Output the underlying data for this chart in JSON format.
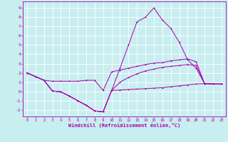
{
  "background_color": "#c8eef0",
  "grid_color": "#ffffff",
  "line_color": "#aa00aa",
  "xlabel": "Windchill (Refroidissement éolien,°C)",
  "xlim": [
    -0.5,
    23.5
  ],
  "ylim": [
    -2.7,
    9.7
  ],
  "yticks": [
    -2,
    -1,
    0,
    1,
    2,
    3,
    4,
    5,
    6,
    7,
    8,
    9
  ],
  "xticks": [
    0,
    1,
    2,
    3,
    4,
    5,
    6,
    7,
    8,
    9,
    10,
    11,
    12,
    13,
    14,
    15,
    16,
    17,
    18,
    19,
    20,
    21,
    22,
    23
  ],
  "line1_x": [
    0,
    1,
    2,
    3,
    4,
    5,
    6,
    7,
    8,
    9,
    10,
    11,
    12,
    13,
    14,
    15,
    16,
    17,
    18,
    19,
    20,
    21,
    22,
    23
  ],
  "line1_y": [
    2.0,
    1.6,
    1.2,
    1.1,
    1.1,
    1.1,
    1.1,
    1.2,
    1.2,
    0.1,
    2.1,
    2.3,
    2.5,
    2.7,
    2.9,
    3.05,
    3.1,
    3.3,
    3.4,
    3.5,
    3.2,
    0.85,
    0.8,
    0.8
  ],
  "line2_x": [
    0,
    1,
    2,
    3,
    4,
    5,
    6,
    7,
    8,
    9,
    10,
    11,
    12,
    13,
    14,
    15,
    16,
    17,
    18,
    19,
    20,
    21,
    22,
    23
  ],
  "line2_y": [
    2.0,
    1.6,
    1.2,
    0.05,
    -0.05,
    -0.5,
    -1.0,
    -1.5,
    -2.1,
    -2.2,
    0.1,
    2.5,
    5.0,
    7.5,
    8.0,
    9.0,
    7.7,
    6.8,
    5.3,
    3.4,
    2.5,
    0.85,
    0.8,
    0.8
  ],
  "line3_x": [
    0,
    1,
    2,
    3,
    4,
    5,
    6,
    7,
    8,
    9,
    10,
    11,
    12,
    13,
    14,
    15,
    16,
    17,
    18,
    19,
    20,
    21,
    22,
    23
  ],
  "line3_y": [
    2.0,
    1.6,
    1.2,
    0.05,
    -0.05,
    -0.5,
    -1.0,
    -1.5,
    -2.1,
    -2.2,
    0.1,
    1.0,
    1.5,
    1.9,
    2.2,
    2.4,
    2.6,
    2.7,
    2.8,
    2.9,
    2.8,
    0.85,
    0.8,
    0.8
  ],
  "line4_x": [
    0,
    1,
    2,
    3,
    4,
    5,
    6,
    7,
    8,
    9,
    10,
    11,
    12,
    13,
    14,
    15,
    16,
    17,
    18,
    19,
    20,
    21,
    22,
    23
  ],
  "line4_y": [
    2.0,
    1.6,
    1.2,
    0.05,
    -0.05,
    -0.5,
    -1.0,
    -1.5,
    -2.1,
    -2.2,
    0.1,
    0.15,
    0.2,
    0.25,
    0.3,
    0.35,
    0.4,
    0.5,
    0.6,
    0.7,
    0.8,
    0.85,
    0.8,
    0.8
  ]
}
